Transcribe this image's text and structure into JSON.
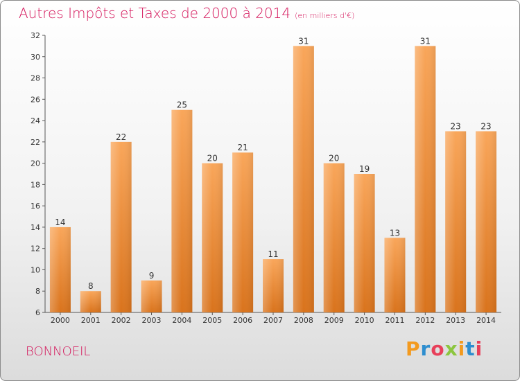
{
  "chart_data": {
    "type": "bar",
    "title": "Autres Impôts et Taxes de 2000 à 2014",
    "subtitle": "(en milliers d'€)",
    "categories": [
      "2000",
      "2001",
      "2002",
      "2003",
      "2004",
      "2005",
      "2006",
      "2007",
      "2008",
      "2009",
      "2010",
      "2011",
      "2012",
      "2013",
      "2014"
    ],
    "values": [
      14,
      8,
      22,
      9,
      25,
      20,
      21,
      11,
      31,
      20,
      19,
      13,
      31,
      23,
      23
    ],
    "ylim": [
      6,
      32
    ],
    "yticks": [
      6,
      8,
      10,
      12,
      14,
      16,
      18,
      20,
      22,
      24,
      26,
      28,
      30,
      32
    ],
    "grid": false,
    "bar_color_top": "#f9a65a",
    "bar_color_bottom": "#d9731c"
  },
  "commune": "BONNOEIL",
  "logo": {
    "letters": [
      "P",
      "r",
      "o",
      "x",
      "i",
      "t",
      "i"
    ],
    "colors": [
      "#f39a1f",
      "#2e8ecf",
      "#e8405a",
      "#8cc63f",
      "#f39a1f",
      "#2e8ecf",
      "#e8405a"
    ]
  }
}
